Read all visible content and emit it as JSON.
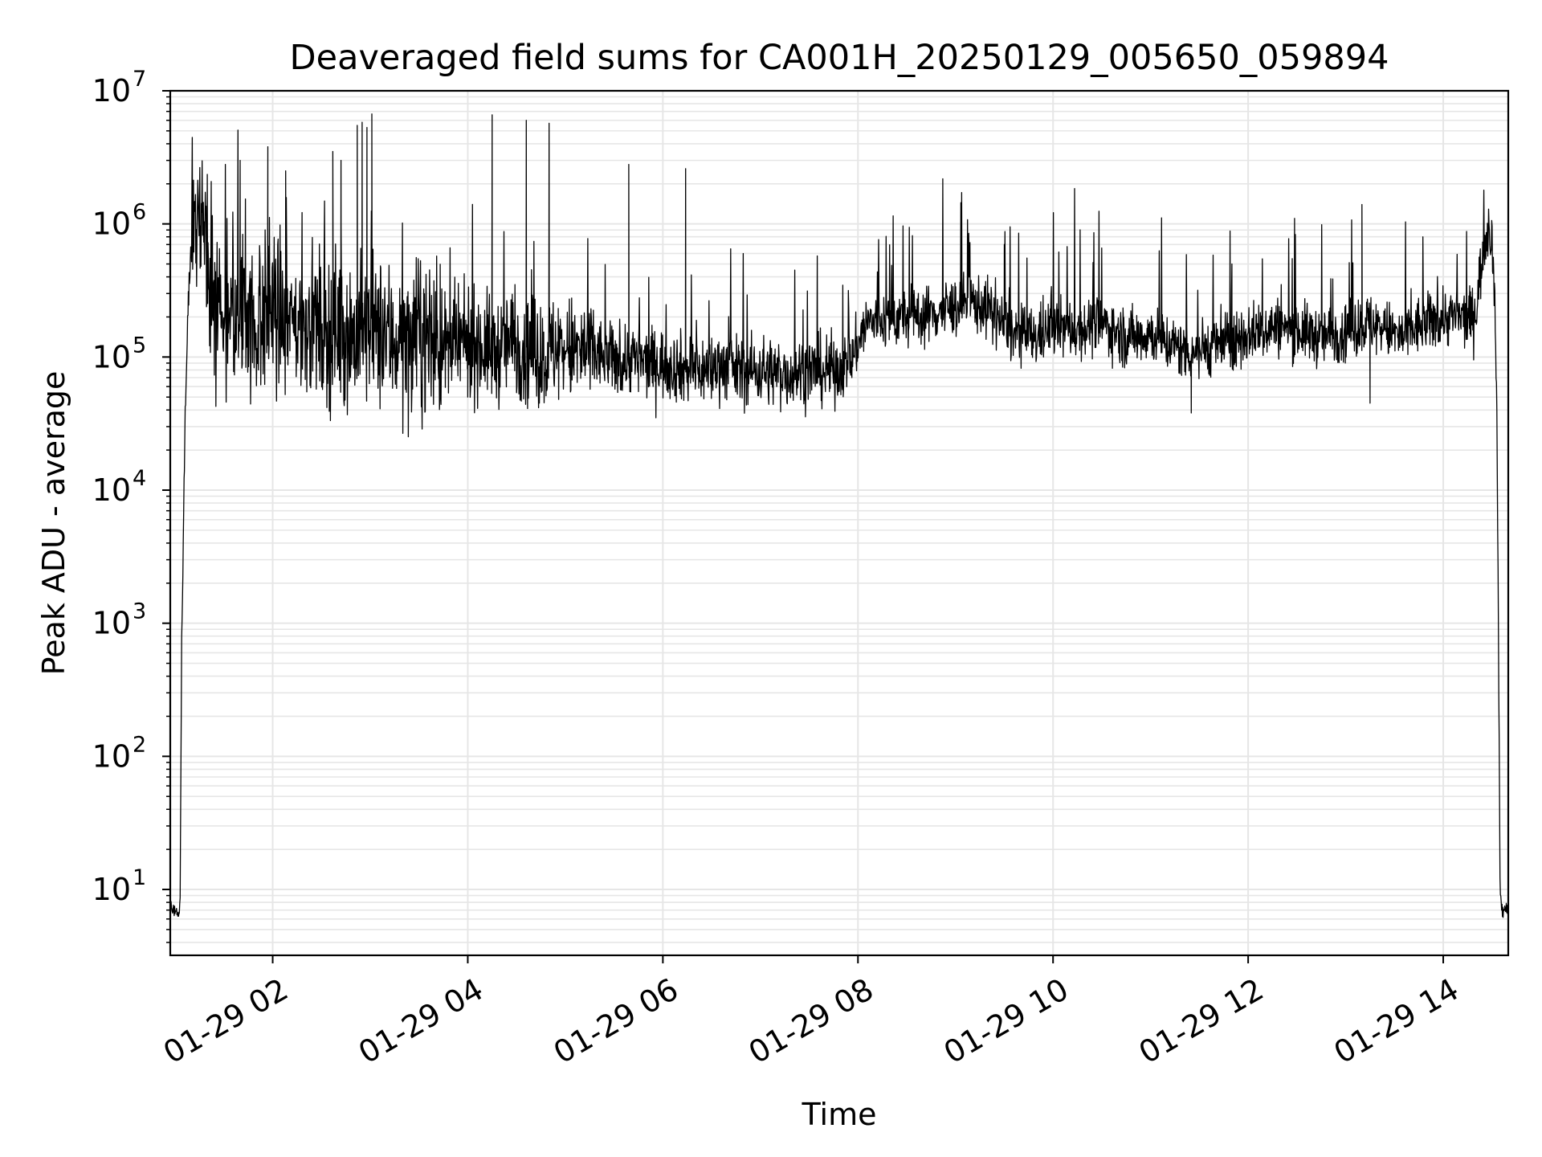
{
  "chart_data": {
    "type": "line",
    "title": "Deaveraged field sums for CA001H_20250129_005650_059894",
    "xlabel": "Time",
    "ylabel": "Peak ADU - average",
    "yscale": "log",
    "ylim": [
      3.2,
      10000000
    ],
    "xlim": [
      "01-29 00:57",
      "01-29 14:40"
    ],
    "grid": true,
    "line_color": "#000000",
    "grid_color": "#e6e6e6",
    "x_ticks": [
      {
        "value": "01-29 02:00",
        "label": "01-29 02"
      },
      {
        "value": "01-29 04:00",
        "label": "01-29 04"
      },
      {
        "value": "01-29 06:00",
        "label": "01-29 06"
      },
      {
        "value": "01-29 08:00",
        "label": "01-29 08"
      },
      {
        "value": "01-29 10:00",
        "label": "01-29 10"
      },
      {
        "value": "01-29 12:00",
        "label": "01-29 12"
      },
      {
        "value": "01-29 14:00",
        "label": "01-29 14"
      }
    ],
    "y_ticks": [
      {
        "value": 10,
        "base": "10",
        "exp": "1"
      },
      {
        "value": 100,
        "base": "10",
        "exp": "2"
      },
      {
        "value": 1000,
        "base": "10",
        "exp": "3"
      },
      {
        "value": 10000,
        "base": "10",
        "exp": "4"
      },
      {
        "value": 100000,
        "base": "10",
        "exp": "5"
      },
      {
        "value": 1000000,
        "base": "10",
        "exp": "6"
      },
      {
        "value": 10000000,
        "base": "10",
        "exp": "7"
      }
    ],
    "series": [
      {
        "x": [
          "01-29 00:57",
          "01-29 01:03",
          "01-29 01:04",
          "01-29 01:06",
          "01-29 01:08",
          "01-29 01:10",
          "01-29 01:13",
          "01-29 01:16",
          "01-29 01:19",
          "01-29 01:22",
          "01-29 01:24",
          "01-29 01:27",
          "01-29 01:30",
          "01-29 01:33",
          "01-29 01:37",
          "01-29 01:40",
          "01-29 01:43",
          "01-29 01:46",
          "01-29 01:50",
          "01-29 01:55",
          "01-29 02:00",
          "01-29 02:05",
          "01-29 02:10",
          "01-29 02:15",
          "01-29 02:20",
          "01-29 02:25",
          "01-29 02:30",
          "01-29 02:35",
          "01-29 02:40",
          "01-29 02:44",
          "01-29 02:47",
          "01-29 02:50",
          "01-29 02:54",
          "01-29 02:58",
          "01-29 03:02",
          "01-29 03:05",
          "01-29 03:10",
          "01-29 03:15",
          "01-29 03:20",
          "01-29 03:25",
          "01-29 03:30",
          "01-29 03:35",
          "01-29 03:40",
          "01-29 03:45",
          "01-29 03:50",
          "01-29 04:00",
          "01-29 04:10",
          "01-29 04:18",
          "01-29 04:25",
          "01-29 04:35",
          "01-29 04:40",
          "01-29 04:47",
          "01-29 04:55",
          "01-29 05:05",
          "01-29 05:15",
          "01-29 05:25",
          "01-29 05:35",
          "01-29 05:41",
          "01-29 05:50",
          "01-29 06:00",
          "01-29 06:15",
          "01-29 06:30",
          "01-29 06:35",
          "01-29 06:45",
          "01-29 07:00",
          "01-29 07:15",
          "01-29 07:30",
          "01-29 07:45",
          "01-29 07:55",
          "01-29 08:05",
          "01-29 08:15",
          "01-29 08:30",
          "01-29 08:45",
          "01-29 09:00",
          "01-29 09:10",
          "01-29 09:20",
          "01-29 09:35",
          "01-29 09:50",
          "01-29 10:00",
          "01-29 10:15",
          "01-29 10:30",
          "01-29 10:45",
          "01-29 11:00",
          "01-29 11:15",
          "01-29 11:25",
          "01-29 11:35",
          "01-29 11:50",
          "01-29 12:00",
          "01-29 12:15",
          "01-29 12:30",
          "01-29 12:45",
          "01-29 13:00",
          "01-29 13:15",
          "01-29 13:25",
          "01-29 13:35",
          "01-29 13:45",
          "01-29 14:00",
          "01-29 14:10",
          "01-29 14:15",
          "01-29 14:20",
          "01-29 14:23",
          "01-29 14:26",
          "01-29 14:28",
          "01-29 14:31",
          "01-29 14:33",
          "01-29 14:35",
          "01-29 14:36",
          "01-29 14:40"
        ],
        "y": [
          7,
          6.5,
          600,
          30000,
          250000,
          800000,
          1500000,
          900000,
          600000,
          400000,
          300000,
          250000,
          200000,
          180000,
          180000,
          220000,
          250000,
          200000,
          180000,
          200000,
          220000,
          200000,
          180000,
          170000,
          200000,
          180000,
          160000,
          150000,
          170000,
          160000,
          150000,
          140000,
          150000,
          150000,
          160000,
          150000,
          140000,
          140000,
          130000,
          130000,
          150000,
          140000,
          130000,
          120000,
          110000,
          130000,
          120000,
          110000,
          130000,
          120000,
          110000,
          100000,
          120000,
          110000,
          110000,
          100000,
          90000,
          100000,
          90000,
          90000,
          80000,
          80000,
          90000,
          80000,
          80000,
          75000,
          80000,
          80000,
          90000,
          180000,
          190000,
          200000,
          210000,
          240000,
          260000,
          230000,
          150000,
          140000,
          170000,
          160000,
          180000,
          140000,
          150000,
          120000,
          110000,
          120000,
          130000,
          150000,
          170000,
          160000,
          140000,
          160000,
          180000,
          160000,
          140000,
          170000,
          200000,
          200000,
          190000,
          220000,
          450000,
          800000,
          1000000,
          600000,
          40000,
          10,
          7,
          7
        ]
      }
    ],
    "spikes": {
      "x": [
        "01-29 01:40",
        "01-29 01:57",
        "01-29 02:08",
        "01-29 02:37",
        "01-29 02:42",
        "01-29 02:52",
        "01-29 02:55",
        "01-29 02:58",
        "01-29 03:01",
        "01-29 04:15",
        "01-29 04:36",
        "01-29 04:50",
        "01-29 05:39",
        "01-29 06:14",
        "01-29 09:30",
        "01-29 11:50",
        "01-29 13:10"
      ],
      "y": [
        3000000,
        3800000,
        2500000,
        3500000,
        3000000,
        5500000,
        5800000,
        5300000,
        6700000,
        6600000,
        6000000,
        5700000,
        2800000,
        2600000,
        700000,
        500000,
        1400000
      ]
    },
    "dips": {
      "x": [
        "01-29 04:00",
        "01-29 05:45",
        "01-29 07:40",
        "01-29 11:25",
        "01-29 13:15"
      ],
      "y": [
        50000,
        55000,
        55000,
        38000,
        45000
      ]
    }
  }
}
